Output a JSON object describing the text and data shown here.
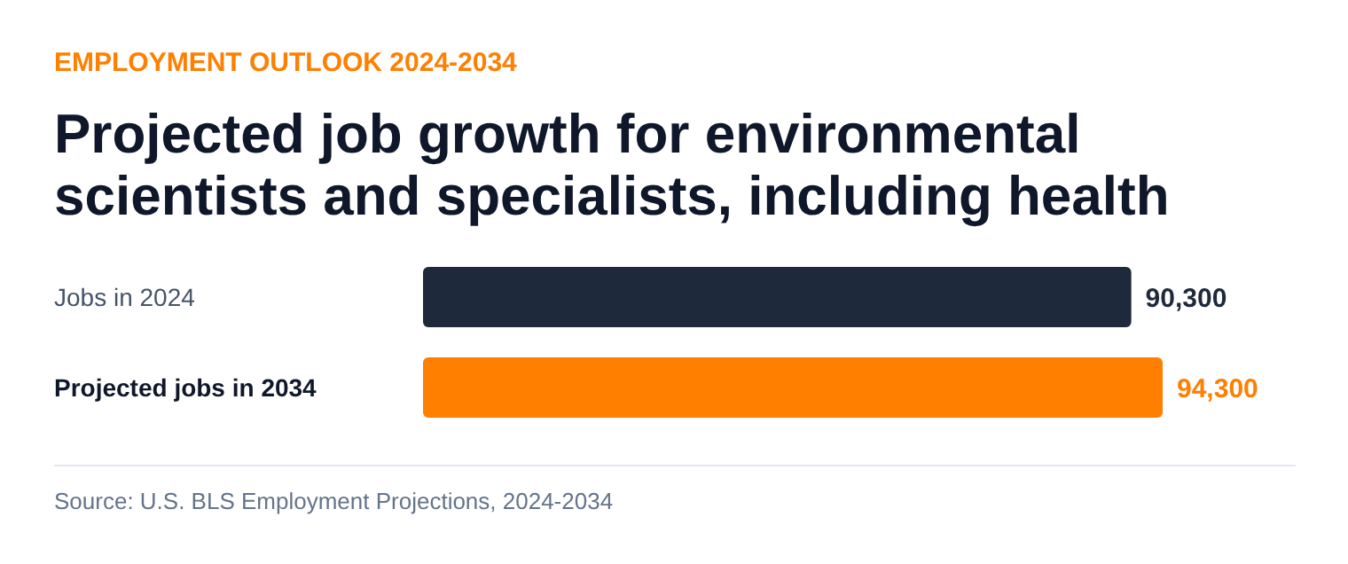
{
  "chart_data": {
    "type": "bar",
    "orientation": "horizontal",
    "subtitle": "EMPLOYMENT OUTLOOK 2024-2034",
    "title": "Projected job growth for environmental scientists and specialists, including health",
    "categories": [
      "Jobs in 2024",
      "Projected jobs in 2034"
    ],
    "values": [
      90300,
      94300
    ],
    "colors": [
      "#1e293b",
      "#ff7f00"
    ],
    "value_labels": [
      "90,300",
      "94,300"
    ],
    "annotations": [
      "Source: U.S. BLS Employment Projections, 2024-2034"
    ]
  }
}
